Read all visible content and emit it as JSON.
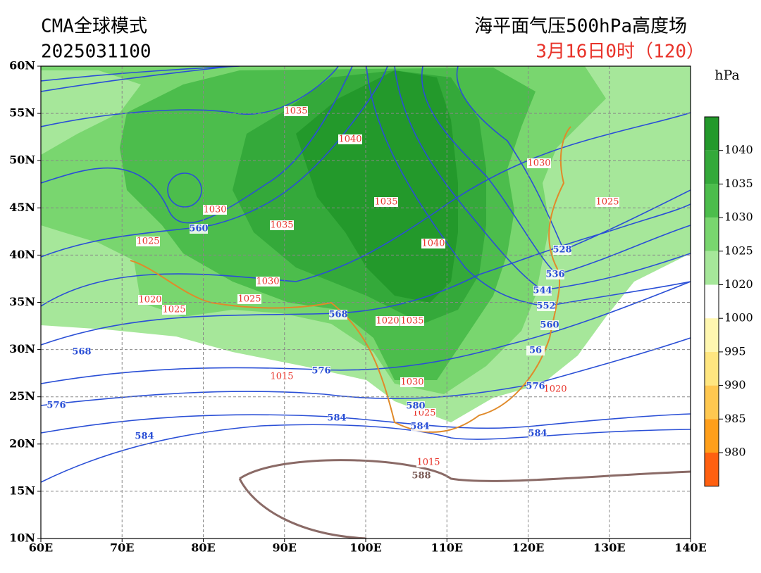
{
  "header": {
    "model": "CMA全球模式",
    "init_time": "2025031100",
    "product": "海平面气压500hPa高度场",
    "valid_time": "3月16日0时（120）"
  },
  "map": {
    "lon_ticks": [
      "60E",
      "70E",
      "80E",
      "90E",
      "100E",
      "110E",
      "120E",
      "130E",
      "140E"
    ],
    "lat_ticks": [
      "10N",
      "15N",
      "20N",
      "25N",
      "30N",
      "35N",
      "40N",
      "45N",
      "50N",
      "55N",
      "60N"
    ],
    "pressure_labels": [
      "1035",
      "1040",
      "1030",
      "1025",
      "1030",
      "1035",
      "1035",
      "1040",
      "1025",
      "1030",
      "1025",
      "1020",
      "1025",
      "1020",
      "1035",
      "1015",
      "1030",
      "1025",
      "1020",
      "1015"
    ],
    "height_labels": [
      "560",
      "528",
      "536",
      "544",
      "552",
      "560",
      "568",
      "568",
      "576",
      "576",
      "576",
      "580",
      "584",
      "584",
      "584",
      "584",
      "588",
      "56"
    ]
  },
  "colorbar": {
    "unit": "hPa",
    "labels": [
      "1040",
      "1035",
      "1030",
      "1025",
      "1020",
      "1000",
      "995",
      "990",
      "985",
      "980"
    ]
  }
}
